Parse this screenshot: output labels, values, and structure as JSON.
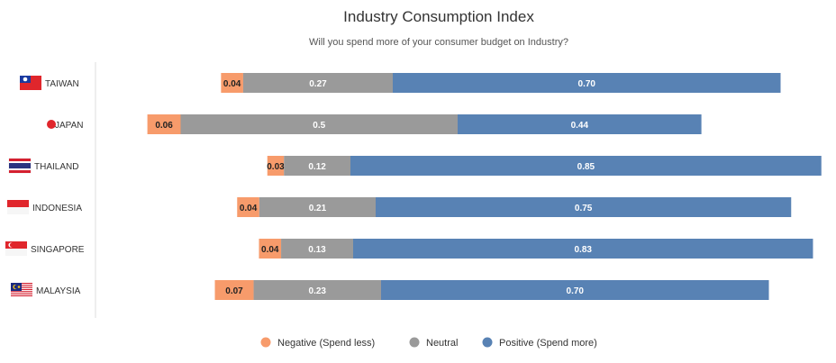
{
  "chart_data": {
    "type": "bar",
    "orientation": "horizontal",
    "stacked": true,
    "title": "Industry Consumption Index",
    "subtitle": "Will you spend more of your consumer budget on Industry?",
    "categories": [
      "TAIWAN",
      "JAPAN",
      "THAILAND",
      "INDONESIA",
      "SINGAPORE",
      "MALAYSIA"
    ],
    "flags": [
      "taiwan-flag-icon",
      "japan-flag-icon",
      "thailand-flag-icon",
      "indonesia-flag-icon",
      "singapore-flag-icon",
      "malaysia-flag-icon"
    ],
    "series": [
      {
        "name": "Negative (Spend less)",
        "color": "#f79b6b",
        "values": [
          0.04,
          0.06,
          0.03,
          0.04,
          0.04,
          0.07
        ],
        "labels": [
          "0.04",
          "0.06",
          "0.03",
          "0.04",
          "0.04",
          "0.07"
        ]
      },
      {
        "name": "Neutral",
        "color": "#9a9a9a",
        "values": [
          0.27,
          0.5,
          0.12,
          0.21,
          0.13,
          0.23
        ],
        "labels": [
          "0.27",
          "0.5",
          "0.12",
          "0.21",
          "0.13",
          "0.23"
        ]
      },
      {
        "name": "Positive (Spend more)",
        "color": "#5882b4",
        "values": [
          0.7,
          0.44,
          0.85,
          0.75,
          0.83,
          0.7
        ],
        "labels": [
          "0.70",
          "0.44",
          "0.85",
          "0.75",
          "0.83",
          "0.70"
        ]
      }
    ],
    "legend": "bottom-center",
    "grid": false
  }
}
